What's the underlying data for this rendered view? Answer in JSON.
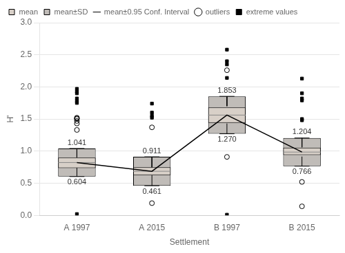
{
  "chart_data": {
    "type": "box",
    "xlabel": "Settlement",
    "ylabel": "H'",
    "categories": [
      "A 1997",
      "A 2015",
      "B 1997",
      "B 2015"
    ],
    "ylim": [
      0.0,
      3.0
    ],
    "yticks": [
      {
        "value": 0,
        "label": "0.0"
      },
      0.5,
      {
        "value": 1,
        "label": "1.0"
      },
      1.5,
      {
        "value": 2,
        "label": "2.0"
      },
      2.5,
      {
        "value": 3,
        "label": "3.0"
      }
    ],
    "grid": true,
    "legend": "upper left",
    "data_labels": true,
    "series": [
      {
        "name": "mean",
        "type": "box",
        "color": "#d8d0c8",
        "low": [
          0.735,
          0.625,
          1.44,
          0.94
        ],
        "high": [
          0.9,
          0.75,
          1.68,
          1.055
        ],
        "values": [
          0.822,
          0.686,
          1.561,
          0.985
        ]
      },
      {
        "name": "mean±SD",
        "type": "box",
        "color": "#c0bcb8",
        "low": [
          0.604,
          0.461,
          1.27,
          0.766
        ],
        "high": [
          1.041,
          0.911,
          1.853,
          1.204
        ],
        "low_labels": [
          "0.604",
          "0.461",
          "1.270",
          "0.766"
        ],
        "high_labels": [
          "1.041",
          "0.911",
          "1.853",
          "1.204"
        ]
      },
      {
        "name": "mean±0.95 Conf. Interval",
        "type": "errorbar",
        "color": "#000000",
        "low": [
          0.74,
          0.625,
          1.43,
          0.915
        ],
        "high": [
          0.9,
          0.748,
          1.7,
          1.06
        ]
      },
      {
        "name": "outliers",
        "type": "scatter",
        "marker": "circle",
        "color": "#000000",
        "values": [
          [
            1.33,
            1.43,
            1.47,
            1.5,
            1.51,
            1.52
          ],
          [
            1.37,
            0.19
          ],
          [
            2.26,
            0.91
          ],
          [
            0.52,
            0.14
          ]
        ]
      },
      {
        "name": "extreme values",
        "type": "scatter",
        "marker": "square",
        "color": "#000000",
        "values": [
          [
            1.75,
            1.78,
            1.82,
            1.9,
            1.93,
            1.97,
            0.02
          ],
          [
            1.52,
            1.55,
            1.6,
            1.74
          ],
          [
            2.58,
            2.4,
            2.35,
            2.14,
            0.01
          ],
          [
            2.13,
            1.9,
            1.82,
            1.79,
            1.48,
            1.5
          ]
        ]
      }
    ]
  }
}
